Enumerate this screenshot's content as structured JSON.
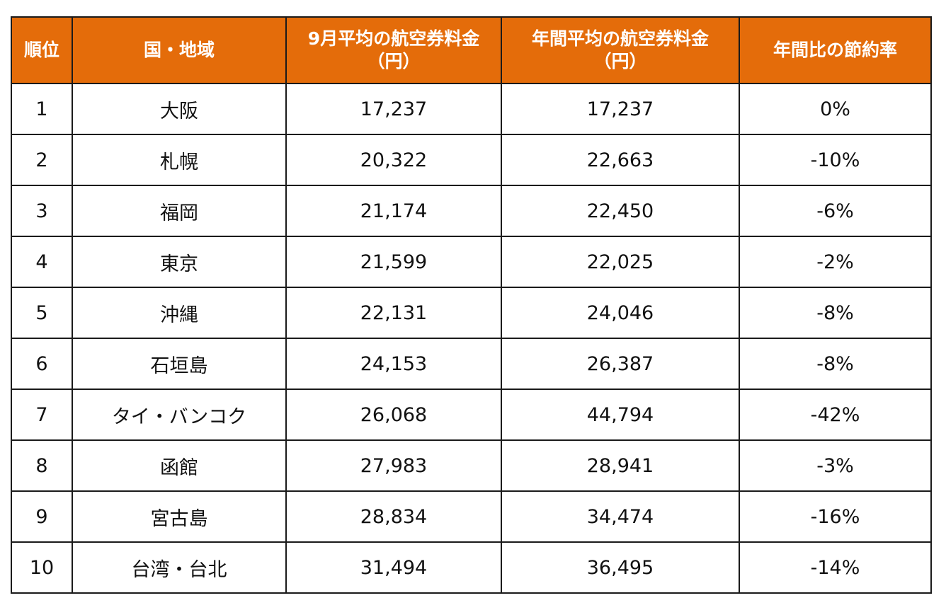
{
  "chart_data": {
    "type": "table",
    "columns": [
      {
        "lines": [
          "順位"
        ]
      },
      {
        "lines": [
          "国・地域"
        ]
      },
      {
        "lines": [
          "9月平均の航空券料金",
          "（円）"
        ]
      },
      {
        "lines": [
          "年間平均の航空券料金",
          "（円）"
        ]
      },
      {
        "lines": [
          "年間比の節約率"
        ]
      }
    ],
    "rows": [
      {
        "rank": "1",
        "region": "大阪",
        "sep_avg": "17,237",
        "annual_avg": "17,237",
        "savings_rate": "0%"
      },
      {
        "rank": "2",
        "region": "札幌",
        "sep_avg": "20,322",
        "annual_avg": "22,663",
        "savings_rate": "-10%"
      },
      {
        "rank": "3",
        "region": "福岡",
        "sep_avg": "21,174",
        "annual_avg": "22,450",
        "savings_rate": "-6%"
      },
      {
        "rank": "4",
        "region": "東京",
        "sep_avg": "21,599",
        "annual_avg": "22,025",
        "savings_rate": "-2%"
      },
      {
        "rank": "5",
        "region": "沖縄",
        "sep_avg": "22,131",
        "annual_avg": "24,046",
        "savings_rate": "-8%"
      },
      {
        "rank": "6",
        "region": "石垣島",
        "sep_avg": "24,153",
        "annual_avg": "26,387",
        "savings_rate": "-8%"
      },
      {
        "rank": "7",
        "region": "タイ・バンコク",
        "sep_avg": "26,068",
        "annual_avg": "44,794",
        "savings_rate": "-42%"
      },
      {
        "rank": "8",
        "region": "函館",
        "sep_avg": "27,983",
        "annual_avg": "28,941",
        "savings_rate": "-3%"
      },
      {
        "rank": "9",
        "region": "宮古島",
        "sep_avg": "28,834",
        "annual_avg": "34,474",
        "savings_rate": "-16%"
      },
      {
        "rank": "10",
        "region": "台湾・台北",
        "sep_avg": "31,494",
        "annual_avg": "36,495",
        "savings_rate": "-14%"
      }
    ],
    "colors": {
      "header_bg": "#e46c0a",
      "header_text": "#ffffff",
      "border": "#1a1a1a"
    }
  }
}
